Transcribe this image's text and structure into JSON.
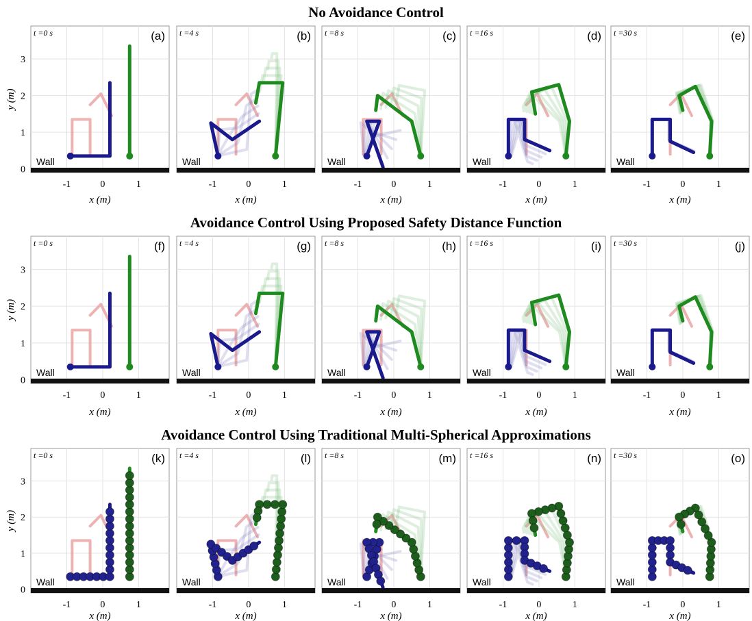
{
  "rows": [
    {
      "title": "No Avoidance Control",
      "panels": [
        {
          "time": "t =0 s",
          "label": "(a)"
        },
        {
          "time": "t =4 s",
          "label": "(b)"
        },
        {
          "time": "t =8 s",
          "label": "(c)"
        },
        {
          "time": "t =16 s",
          "label": "(d)"
        },
        {
          "time": "t =30 s",
          "label": "(e)"
        }
      ]
    },
    {
      "title": "Avoidance Control Using Proposed Safety Distance Function",
      "panels": [
        {
          "time": "t =0 s",
          "label": "(f)"
        },
        {
          "time": "t =4 s",
          "label": "(g)"
        },
        {
          "time": "t =8 s",
          "label": "(h)"
        },
        {
          "time": "t =16 s",
          "label": "(i)"
        },
        {
          "time": "t =30 s",
          "label": "(j)"
        }
      ]
    },
    {
      "title": "Avoidance Control Using Traditional Multi-Spherical Approximations",
      "panels": [
        {
          "time": "t =0 s",
          "label": "(k)"
        },
        {
          "time": "t =4 s",
          "label": "(l)"
        },
        {
          "time": "t =8 s",
          "label": "(m)"
        },
        {
          "time": "t =16 s",
          "label": "(n)"
        },
        {
          "time": "t =30 s",
          "label": "(o)"
        }
      ]
    }
  ],
  "axes": {
    "x_label": "x (m)",
    "y_label": "y (m)",
    "xlim": [
      -2,
      1.85
    ],
    "ylim": [
      -0.1,
      3.9
    ],
    "xticks": [
      -1,
      0,
      1
    ],
    "yticks": [
      0,
      1,
      2,
      3
    ]
  },
  "wall_label": "Wall"
}
